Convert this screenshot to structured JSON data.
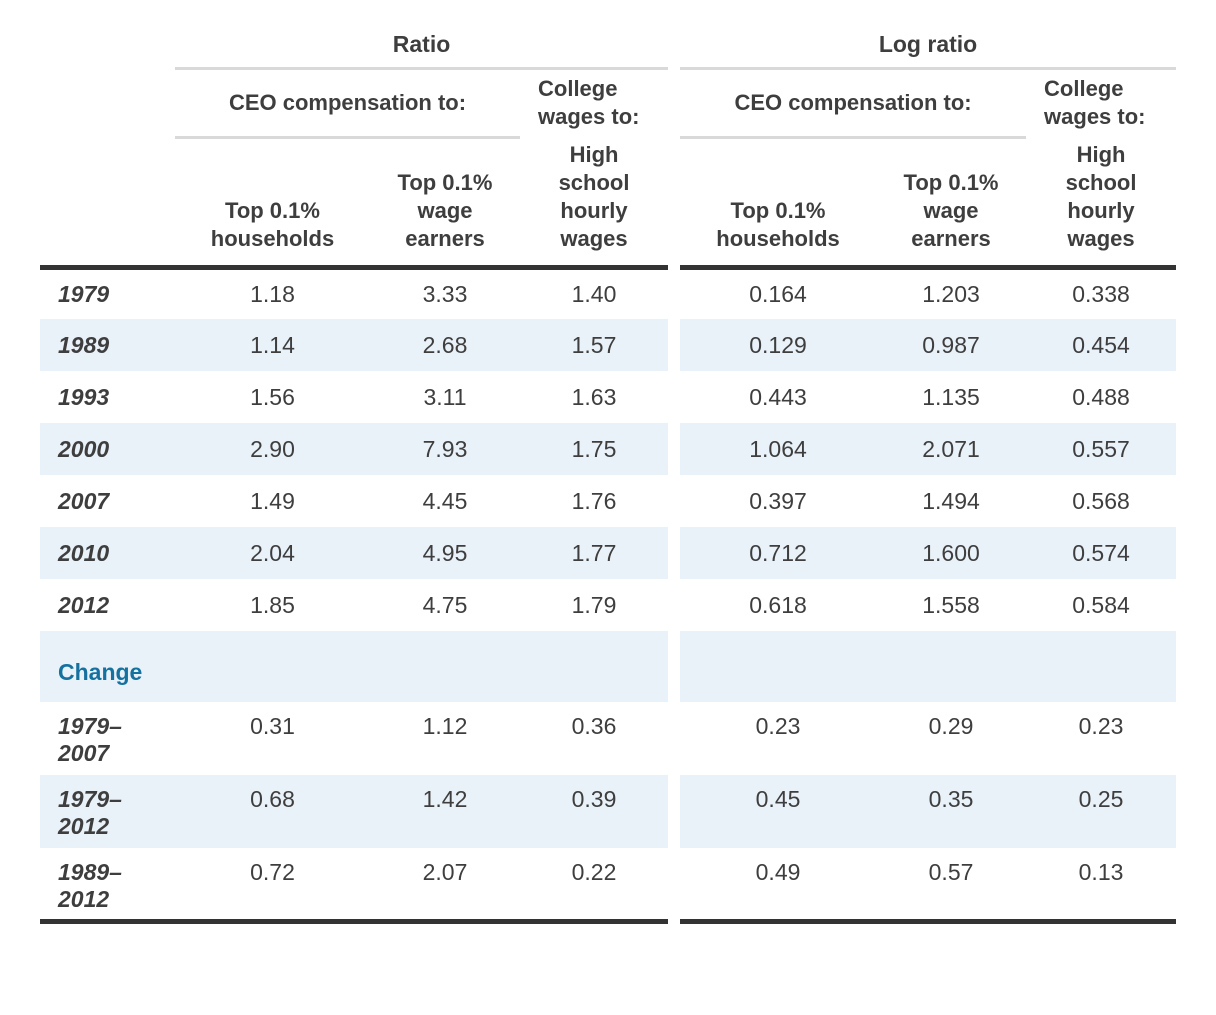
{
  "chart_data": {
    "type": "table",
    "group_titles": [
      "Ratio",
      "Log ratio"
    ],
    "ceo_header": "CEO compensation to:",
    "college_header_lines": [
      "College",
      "wages to:"
    ],
    "column_header_lines": [
      [
        "Top 0.1%",
        "households"
      ],
      [
        "Top 0.1%",
        "wage",
        "earners"
      ],
      [
        "High",
        "school",
        "hourly",
        "wages"
      ]
    ],
    "rows": [
      {
        "type": "year",
        "label_lines": [
          "1979"
        ],
        "striped": false,
        "ratio": [
          "1.18",
          "3.33",
          "1.40"
        ],
        "log_ratio": [
          "0.164",
          "1.203",
          "0.338"
        ]
      },
      {
        "type": "year",
        "label_lines": [
          "1989"
        ],
        "striped": true,
        "ratio": [
          "1.14",
          "2.68",
          "1.57"
        ],
        "log_ratio": [
          "0.129",
          "0.987",
          "0.454"
        ]
      },
      {
        "type": "year",
        "label_lines": [
          "1993"
        ],
        "striped": false,
        "ratio": [
          "1.56",
          "3.11",
          "1.63"
        ],
        "log_ratio": [
          "0.443",
          "1.135",
          "0.488"
        ]
      },
      {
        "type": "year",
        "label_lines": [
          "2000"
        ],
        "striped": true,
        "ratio": [
          "2.90",
          "7.93",
          "1.75"
        ],
        "log_ratio": [
          "1.064",
          "2.071",
          "0.557"
        ]
      },
      {
        "type": "year",
        "label_lines": [
          "2007"
        ],
        "striped": false,
        "ratio": [
          "1.49",
          "4.45",
          "1.76"
        ],
        "log_ratio": [
          "0.397",
          "1.494",
          "0.568"
        ]
      },
      {
        "type": "year",
        "label_lines": [
          "2010"
        ],
        "striped": true,
        "ratio": [
          "2.04",
          "4.95",
          "1.77"
        ],
        "log_ratio": [
          "0.712",
          "1.600",
          "0.574"
        ]
      },
      {
        "type": "year",
        "label_lines": [
          "2012"
        ],
        "striped": false,
        "ratio": [
          "1.85",
          "4.75",
          "1.79"
        ],
        "log_ratio": [
          "0.618",
          "1.558",
          "0.584"
        ]
      },
      {
        "type": "section",
        "label_lines": [
          "Change"
        ],
        "striped": true,
        "ratio": [
          "",
          "",
          ""
        ],
        "log_ratio": [
          "",
          "",
          ""
        ]
      },
      {
        "type": "period",
        "label_lines": [
          "1979–",
          "2007"
        ],
        "striped": false,
        "ratio": [
          "0.31",
          "1.12",
          "0.36"
        ],
        "log_ratio": [
          "0.23",
          "0.29",
          "0.23"
        ]
      },
      {
        "type": "period",
        "label_lines": [
          "1979–",
          "2012"
        ],
        "striped": true,
        "ratio": [
          "0.68",
          "1.42",
          "0.39"
        ],
        "log_ratio": [
          "0.45",
          "0.35",
          "0.25"
        ]
      },
      {
        "type": "period",
        "label_lines": [
          "1989–",
          "2012"
        ],
        "striped": false,
        "ratio": [
          "0.72",
          "2.07",
          "0.22"
        ],
        "log_ratio": [
          "0.49",
          "0.57",
          "0.13"
        ]
      }
    ],
    "colors": {
      "stripe": "#e9f1f9",
      "section_text": "#15719f",
      "rule_light": "#d9d9d9",
      "rule_dark": "#333333",
      "text": "#3e3e3e"
    }
  }
}
